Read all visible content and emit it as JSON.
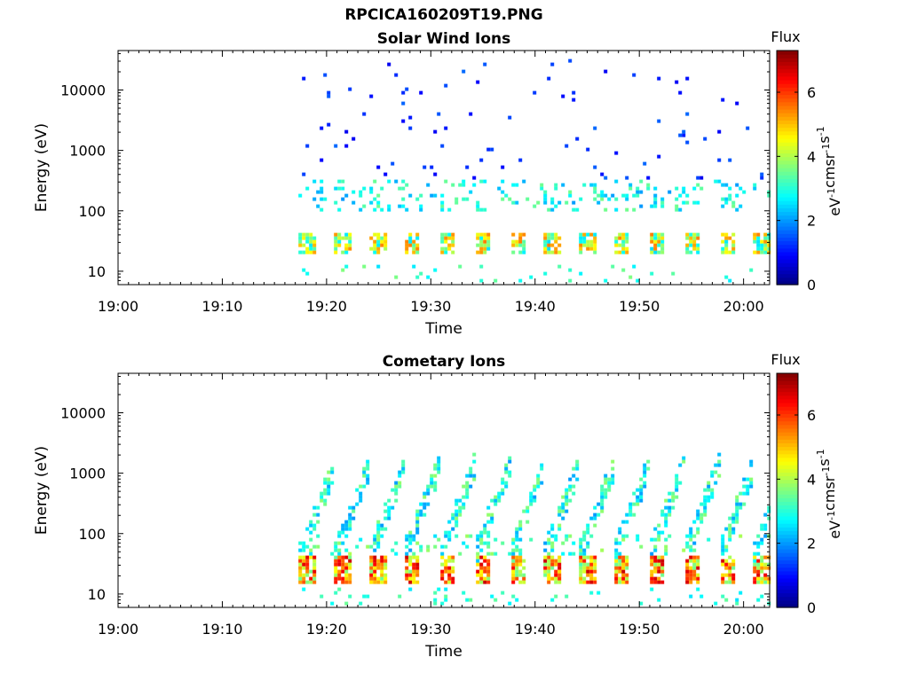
{
  "figure_title": "RPCICA160209T19.PNG",
  "chart_data": [
    {
      "type": "heatmap",
      "title": "Solar Wind Ions",
      "xlabel": "Time",
      "ylabel": "Energy (eV)",
      "x_ticks": [
        "19:00",
        "19:10",
        "19:20",
        "19:30",
        "19:40",
        "19:50",
        "20:00"
      ],
      "x_tick_minutes": [
        0,
        10,
        20,
        30,
        40,
        50,
        60
      ],
      "xlim_minutes": [
        0,
        62.5
      ],
      "y_scale": "log",
      "ylim": [
        6,
        45000
      ],
      "y_ticks": [
        10,
        100,
        1000,
        10000
      ],
      "y_tick_labels": [
        "10",
        "100",
        "1000",
        "10000"
      ],
      "data_start_minute": 17.3,
      "data_end_minute": 62.3,
      "colorbar": {
        "title": "Flux",
        "label": "eV-1cm-2sr-1s-1",
        "range": [
          0,
          7.3
        ],
        "ticks": [
          0,
          2,
          4,
          6
        ],
        "colormap": "jet"
      },
      "features": [
        {
          "description_band": "low-energy proton band",
          "energy_range": [
            18,
            40
          ],
          "peak_flux": 5.5
        },
        {
          "description_band": "mid-energy alpha band",
          "energy_range": [
            100,
            300
          ],
          "peak_flux": 3.5
        },
        {
          "description_band": "sparse high-energy counts",
          "energy_range": [
            300,
            25000
          ],
          "peak_flux": 1.5
        }
      ]
    },
    {
      "type": "heatmap",
      "title": "Cometary Ions",
      "xlabel": "Time",
      "ylabel": "Energy (eV)",
      "x_ticks": [
        "19:00",
        "19:10",
        "19:20",
        "19:30",
        "19:40",
        "19:50",
        "20:00"
      ],
      "x_tick_minutes": [
        0,
        10,
        20,
        30,
        40,
        50,
        60
      ],
      "xlim_minutes": [
        0,
        62.5
      ],
      "y_scale": "log",
      "ylim": [
        6,
        45000
      ],
      "y_ticks": [
        10,
        100,
        1000,
        10000
      ],
      "y_tick_labels": [
        "10",
        "100",
        "1000",
        "10000"
      ],
      "data_start_minute": 17.3,
      "data_end_minute": 62.3,
      "colorbar": {
        "title": "Flux",
        "label": "eV-1cm-2sr-1s-1",
        "range": [
          0,
          7.3
        ],
        "ticks": [
          0,
          2,
          4,
          6
        ],
        "colormap": "jet"
      },
      "features": [
        {
          "description_band": "low-energy cometary ion band",
          "energy_range": [
            14,
            40
          ],
          "peak_flux": 6.5
        },
        {
          "description_band": "rising energy streaks per scan",
          "energy_range": [
            40,
            600
          ],
          "peak_flux": 3.5
        }
      ]
    }
  ]
}
